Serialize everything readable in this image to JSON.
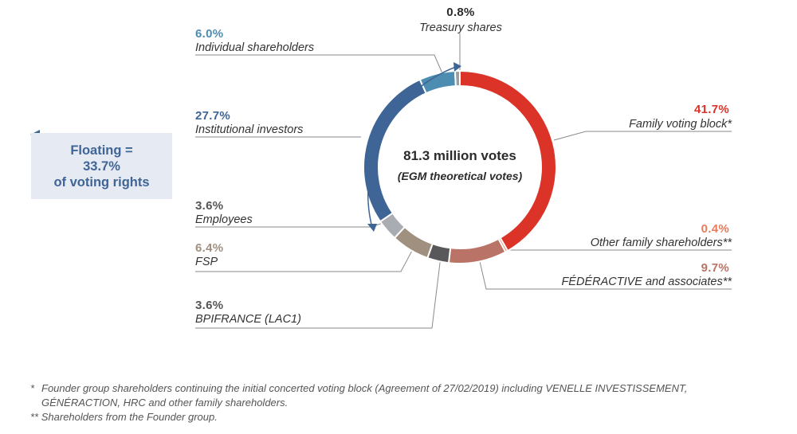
{
  "colors": {
    "family": "#dc3329",
    "other_family": "#ea7b5c",
    "federactive": "#b97467",
    "bpifrance": "#58585a",
    "fsp": "#a09080",
    "employees": "#a9acb2",
    "institutional": "#3f6496",
    "individual": "#4d8db2",
    "treasury": "#9b9ea3",
    "floating_text": "#3f6496",
    "floating_bg": "#e6ebf3"
  },
  "center": {
    "title": "81.3 million votes",
    "subtitle": "(EGM theoretical votes)"
  },
  "floating": {
    "line1": "Floating =",
    "line2": "33.7%",
    "line3": "of voting rights"
  },
  "chart_data": {
    "type": "pie",
    "donut": true,
    "start_angle_deg": 0,
    "direction": "clockwise",
    "slices": [
      {
        "key": "family",
        "label": "Family voting block*",
        "pct_label": "41.7%",
        "value": 41.7
      },
      {
        "key": "other_family",
        "label": "Other family shareholders**",
        "pct_label": "0.4%",
        "value": 0.4
      },
      {
        "key": "federactive",
        "label": "FÉDÉRACTIVE and associates**",
        "pct_label": "9.7%",
        "value": 9.7
      },
      {
        "key": "bpifrance",
        "label": "BPIFRANCE (LAC1)",
        "pct_label": "3.6%",
        "value": 3.6
      },
      {
        "key": "fsp",
        "label": "FSP",
        "pct_label": "6.4%",
        "value": 6.4
      },
      {
        "key": "employees",
        "label": "Employees",
        "pct_label": "3.6%",
        "value": 3.6
      },
      {
        "key": "institutional",
        "label": "Institutional investors",
        "pct_label": "27.7%",
        "value": 27.7
      },
      {
        "key": "individual",
        "label": "Individual shareholders",
        "pct_label": "6.0%",
        "value": 6.0
      },
      {
        "key": "treasury",
        "label": "Treasury shares",
        "pct_label": "0.8%",
        "value": 0.8
      }
    ]
  },
  "footnotes": {
    "note1_marker": "*",
    "note1_line1": "Founder group shareholders continuing the initial concerted voting block (Agreement of 27/02/2019) including VENELLE INVESTISSEMENT,",
    "note1_line2": "GÉNÉRACTION, HRC and other family shareholders.",
    "note2": "** Shareholders from the Founder group."
  }
}
